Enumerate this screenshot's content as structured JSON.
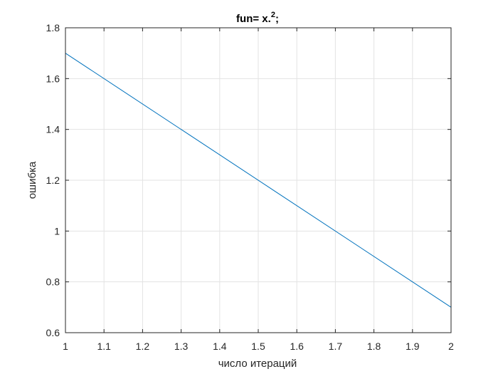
{
  "chart_data": {
    "type": "line",
    "title": {
      "main": "fun= x.",
      "superscript": "2",
      "suffix": ";"
    },
    "xlabel": "число итераций",
    "ylabel": "ошибка",
    "xlim": [
      1,
      2
    ],
    "ylim": [
      0.6,
      1.8
    ],
    "xticks": [
      1,
      1.1,
      1.2,
      1.3,
      1.4,
      1.5,
      1.6,
      1.7,
      1.8,
      1.9,
      2
    ],
    "xtick_labels": [
      "1",
      "1.1",
      "1.2",
      "1.3",
      "1.4",
      "1.5",
      "1.6",
      "1.7",
      "1.8",
      "1.9",
      "2"
    ],
    "yticks": [
      0.6,
      0.8,
      1,
      1.2,
      1.4,
      1.6,
      1.8
    ],
    "ytick_labels": [
      "0.6",
      "0.8",
      "1",
      "1.2",
      "1.4",
      "1.6",
      "1.8"
    ],
    "grid": true,
    "series": [
      {
        "x": [
          1,
          2
        ],
        "y": [
          1.7,
          0.7
        ],
        "color": "#0072BD"
      }
    ]
  }
}
